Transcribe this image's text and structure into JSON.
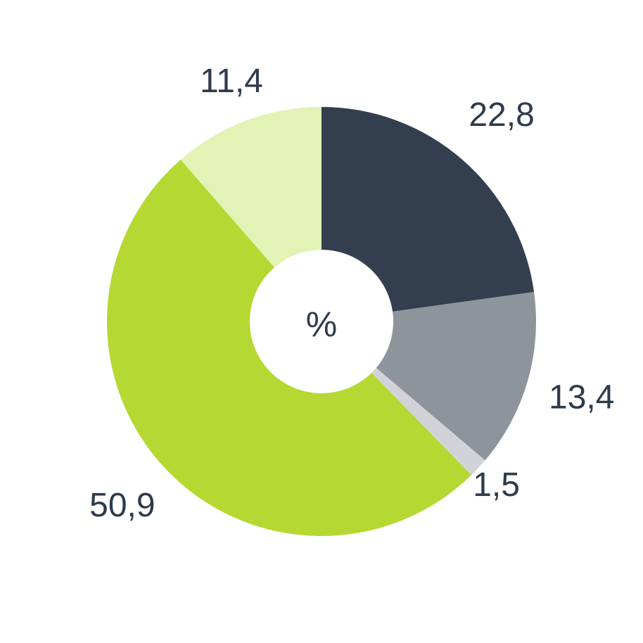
{
  "chart_data": {
    "type": "pie",
    "style": "donut",
    "center_label": "%",
    "slices": [
      {
        "label": "22,8",
        "value": 22.8,
        "color": "#333f4e"
      },
      {
        "label": "13,4",
        "value": 13.4,
        "color": "#8d949c"
      },
      {
        "label": "1,5",
        "value": 1.5,
        "color": "#d1d3d8"
      },
      {
        "label": "50,9",
        "value": 50.9,
        "color": "#b5d833"
      },
      {
        "label": "11,4",
        "value": 11.4,
        "color": "#e3f2b5"
      }
    ],
    "legend": "none",
    "title": "",
    "xlabel": "",
    "ylabel": ""
  }
}
